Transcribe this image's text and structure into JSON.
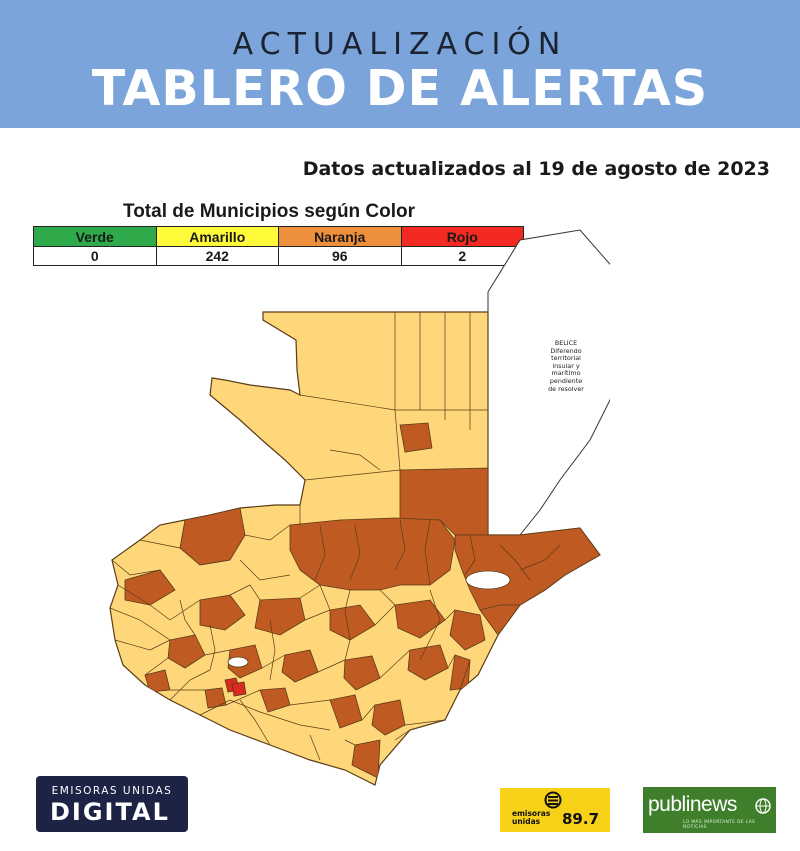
{
  "header": {
    "kicker": "ACTUALIZACIÓN",
    "title": "TABLERO DE ALERTAS"
  },
  "updated_note": "Datos actualizados al 19 de agosto de 2023",
  "totals": {
    "title": "Total de Municipios según Color",
    "columns": [
      {
        "label": "Verde",
        "count": "0",
        "color": "#2faa4a"
      },
      {
        "label": "Amarillo",
        "count": "242",
        "color": "#fffb3a"
      },
      {
        "label": "Naranja",
        "count": "96",
        "color": "#ee8f3c"
      },
      {
        "label": "Rojo",
        "count": "2",
        "color": "#f22a22"
      }
    ]
  },
  "map": {
    "belize_note": [
      "BELICE",
      "Diferendo",
      "territorial",
      "insular y",
      "marítimo",
      "pendiente",
      "de resolver"
    ],
    "colors": {
      "amarillo": "#fdd779",
      "naranja": "#bf5a22",
      "rojo": "#d82a1e",
      "borders": "#5a3c18"
    }
  },
  "logos": {
    "emisoras_unidas_digital": {
      "line1": "EMISORAS UNIDAS",
      "line2": "DIGITAL"
    },
    "emisoras_unidas_897": {
      "line1": "emisoras",
      "line2": "unidas",
      "freq": "89.7"
    },
    "publinews": {
      "name": "publinews",
      "tagline": "LO MÁS IMPORTANTE DE LAS NOTICIAS"
    }
  }
}
